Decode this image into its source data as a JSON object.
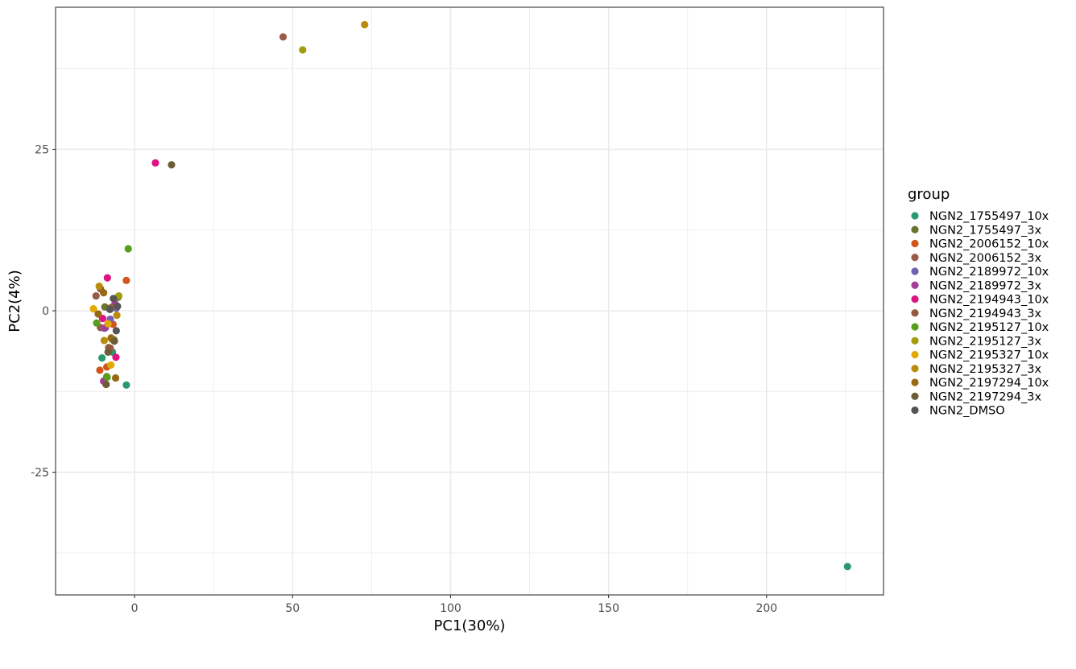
{
  "chart_data": {
    "type": "scatter",
    "xlabel": "PC1(30%)",
    "ylabel": "PC2(4%)",
    "xlim": [
      -25,
      237
    ],
    "ylim": [
      -44,
      47
    ],
    "x_ticks": [
      0,
      50,
      100,
      150,
      200
    ],
    "x_tick_labels": [
      "0",
      "50",
      "100",
      "150",
      "200"
    ],
    "y_ticks": [
      -25,
      0,
      25
    ],
    "y_tick_labels": [
      "-25",
      "0",
      "25"
    ],
    "grid": true,
    "legend": {
      "title": "group",
      "placement": "right"
    },
    "series": [
      {
        "name": "NGN2_1755497_10x",
        "color": "#2a9a6c",
        "points": [
          [
            225.6,
            -39.6
          ],
          [
            -2.6,
            -11.5
          ],
          [
            -10.3,
            -7.3
          ],
          [
            -7.0,
            -6.4
          ]
        ]
      },
      {
        "name": "NGN2_1755497_3x",
        "color": "#6b742d",
        "points": [
          [
            -8.8,
            -10.2
          ],
          [
            -9.4,
            0.6
          ],
          [
            -5.2,
            2.1
          ],
          [
            -6.5,
            -4.5
          ]
        ]
      },
      {
        "name": "NGN2_2006152_10x",
        "color": "#d2561b",
        "points": [
          [
            -2.6,
            4.7
          ],
          [
            -11.0,
            -9.2
          ],
          [
            -8.8,
            -8.7
          ],
          [
            -6.8,
            -2.1
          ]
        ]
      },
      {
        "name": "NGN2_2006152_3x",
        "color": "#9a5a46",
        "points": [
          [
            47.0,
            42.4
          ],
          [
            -12.2,
            2.3
          ],
          [
            -7.7,
            -5.8
          ],
          [
            -10.8,
            -2.6
          ]
        ]
      },
      {
        "name": "NGN2_2189972_10x",
        "color": "#7261b0",
        "points": [
          [
            -9.5,
            -2.7
          ],
          [
            -7.7,
            -1.3
          ],
          [
            -5.8,
            0.4
          ]
        ]
      },
      {
        "name": "NGN2_2189972_3x",
        "color": "#a33d98",
        "points": [
          [
            -9.8,
            -10.9
          ],
          [
            -9.2,
            -2.6
          ],
          [
            -6.2,
            1.1
          ]
        ]
      },
      {
        "name": "NGN2_2194943_10x",
        "color": "#dd1381",
        "points": [
          [
            6.6,
            22.9
          ],
          [
            -8.6,
            5.1
          ],
          [
            -10.1,
            -1.2
          ],
          [
            -5.9,
            -7.2
          ]
        ]
      },
      {
        "name": "NGN2_2194943_3x",
        "color": "#94593f",
        "points": [
          [
            -7.4,
            0.5
          ],
          [
            -10.8,
            3.4
          ],
          [
            -8.2,
            -5.7
          ]
        ]
      },
      {
        "name": "NGN2_2195127_10x",
        "color": "#579e1b",
        "points": [
          [
            -2.0,
            9.6
          ],
          [
            -12.0,
            -1.9
          ],
          [
            -8.7,
            -10.3
          ]
        ]
      },
      {
        "name": "NGN2_2195127_3x",
        "color": "#a09d0e",
        "points": [
          [
            53.2,
            40.4
          ],
          [
            -5.0,
            2.3
          ],
          [
            -7.2,
            -4.4
          ]
        ]
      },
      {
        "name": "NGN2_2195327_10x",
        "color": "#e1a904",
        "points": [
          [
            -13.0,
            0.3
          ],
          [
            -8.4,
            -2.0
          ],
          [
            -7.5,
            -8.4
          ]
        ]
      },
      {
        "name": "NGN2_2195327_3x",
        "color": "#bb8b0c",
        "points": [
          [
            72.8,
            44.3
          ],
          [
            -11.2,
            3.8
          ],
          [
            -5.6,
            -0.7
          ],
          [
            -9.6,
            -4.6
          ]
        ]
      },
      {
        "name": "NGN2_2197294_10x",
        "color": "#976913",
        "points": [
          [
            -9.8,
            2.8
          ],
          [
            -6.0,
            -10.4
          ],
          [
            -11.5,
            -0.5
          ],
          [
            -7.4,
            -4.2
          ]
        ]
      },
      {
        "name": "NGN2_2197294_3x",
        "color": "#6d5d37",
        "points": [
          [
            11.7,
            22.6
          ],
          [
            -9.0,
            -11.4
          ],
          [
            -8.4,
            -6.4
          ],
          [
            -6.4,
            -4.7
          ]
        ]
      },
      {
        "name": "NGN2_DMSO",
        "color": "#555555",
        "points": [
          [
            -5.4,
            0.7
          ],
          [
            -6.7,
            1.9
          ],
          [
            -5.8,
            -3.1
          ],
          [
            -7.8,
            0.2
          ]
        ]
      }
    ]
  }
}
